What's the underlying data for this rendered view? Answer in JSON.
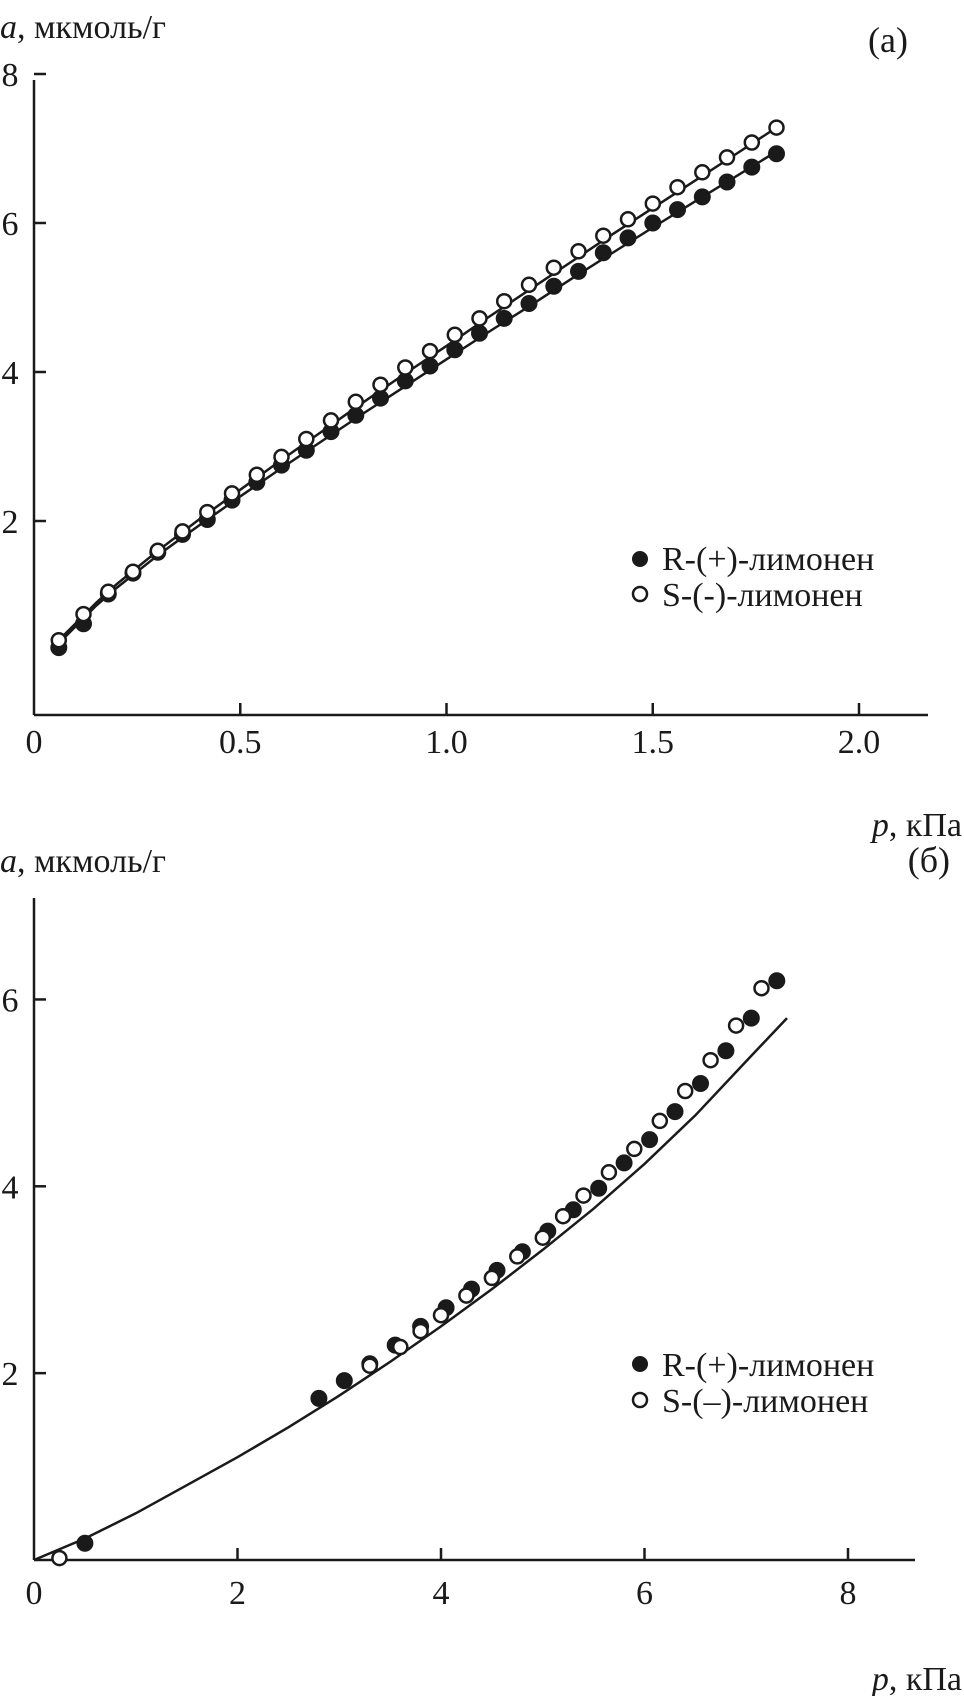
{
  "colors": {
    "ink": "#1a1a1a",
    "background": "#ffffff"
  },
  "chart_data": [
    {
      "type": "scatter",
      "panel_label": "(а)",
      "ylabel_var": "a",
      "ylabel_unit": ", мкмоль/г",
      "xlabel_var": "p",
      "xlabel_unit": ", кПа",
      "xlim": [
        0,
        2.0
      ],
      "ylim": [
        0,
        8
      ],
      "xticks": [
        {
          "value": 0,
          "label": "0"
        },
        {
          "value": 0.5,
          "label": "0.5"
        },
        {
          "value": 1.0,
          "label": "1.0"
        },
        {
          "value": 1.5,
          "label": "1.5"
        },
        {
          "value": 2.0,
          "label": "2.0"
        }
      ],
      "yticks": [
        {
          "value": 2,
          "label": "2"
        },
        {
          "value": 4,
          "label": "4"
        },
        {
          "value": 6,
          "label": "6"
        },
        {
          "value": 8,
          "label": "8"
        }
      ],
      "legend": [
        {
          "label": "R-(+)-лимонен",
          "marker": "filled"
        },
        {
          "label": "S-(-)-лимонен",
          "marker": "open"
        }
      ],
      "legend_position": "right",
      "grid": false,
      "series": [
        {
          "marker": "filled",
          "points": [
            [
              0.06,
              0.3
            ],
            [
              0.12,
              0.62
            ],
            [
              0.18,
              1.02
            ],
            [
              0.24,
              1.3
            ],
            [
              0.3,
              1.58
            ],
            [
              0.36,
              1.82
            ],
            [
              0.42,
              2.02
            ],
            [
              0.48,
              2.28
            ],
            [
              0.54,
              2.52
            ],
            [
              0.6,
              2.75
            ],
            [
              0.66,
              2.95
            ],
            [
              0.72,
              3.2
            ],
            [
              0.78,
              3.42
            ],
            [
              0.84,
              3.65
            ],
            [
              0.9,
              3.88
            ],
            [
              0.96,
              4.08
            ],
            [
              1.02,
              4.3
            ],
            [
              1.08,
              4.52
            ],
            [
              1.14,
              4.72
            ],
            [
              1.2,
              4.92
            ],
            [
              1.26,
              5.15
            ],
            [
              1.32,
              5.35
            ],
            [
              1.38,
              5.6
            ],
            [
              1.44,
              5.8
            ],
            [
              1.5,
              6.0
            ],
            [
              1.56,
              6.18
            ],
            [
              1.62,
              6.35
            ],
            [
              1.68,
              6.55
            ],
            [
              1.74,
              6.75
            ],
            [
              1.8,
              6.93
            ]
          ]
        },
        {
          "marker": "open",
          "points": [
            [
              0.06,
              0.4
            ],
            [
              0.12,
              0.75
            ],
            [
              0.18,
              1.05
            ],
            [
              0.24,
              1.32
            ],
            [
              0.3,
              1.6
            ],
            [
              0.36,
              1.86
            ],
            [
              0.42,
              2.12
            ],
            [
              0.48,
              2.37
            ],
            [
              0.54,
              2.62
            ],
            [
              0.6,
              2.86
            ],
            [
              0.66,
              3.1
            ],
            [
              0.72,
              3.35
            ],
            [
              0.78,
              3.6
            ],
            [
              0.84,
              3.83
            ],
            [
              0.9,
              4.06
            ],
            [
              0.96,
              4.28
            ],
            [
              1.02,
              4.5
            ],
            [
              1.08,
              4.72
            ],
            [
              1.14,
              4.95
            ],
            [
              1.2,
              5.17
            ],
            [
              1.26,
              5.4
            ],
            [
              1.32,
              5.62
            ],
            [
              1.38,
              5.83
            ],
            [
              1.44,
              6.05
            ],
            [
              1.5,
              6.26
            ],
            [
              1.56,
              6.48
            ],
            [
              1.62,
              6.68
            ],
            [
              1.68,
              6.88
            ],
            [
              1.74,
              7.08
            ],
            [
              1.8,
              7.28
            ]
          ]
        }
      ],
      "fit_curves": [
        {
          "points": [
            [
              0.06,
              0.36
            ],
            [
              0.1,
              0.58
            ],
            [
              0.15,
              0.86
            ],
            [
              0.2,
              1.1
            ],
            [
              0.3,
              1.54
            ],
            [
              0.4,
              1.94
            ],
            [
              0.5,
              2.33
            ],
            [
              0.6,
              2.71
            ],
            [
              0.7,
              3.08
            ],
            [
              0.8,
              3.45
            ],
            [
              0.9,
              3.81
            ],
            [
              1.0,
              4.17
            ],
            [
              1.1,
              4.53
            ],
            [
              1.2,
              4.88
            ],
            [
              1.3,
              5.24
            ],
            [
              1.4,
              5.59
            ],
            [
              1.5,
              5.94
            ],
            [
              1.6,
              6.28
            ],
            [
              1.7,
              6.62
            ],
            [
              1.8,
              6.96
            ]
          ]
        },
        {
          "points": [
            [
              0.06,
              0.4
            ],
            [
              0.1,
              0.62
            ],
            [
              0.15,
              0.9
            ],
            [
              0.2,
              1.15
            ],
            [
              0.3,
              1.6
            ],
            [
              0.4,
              2.02
            ],
            [
              0.5,
              2.42
            ],
            [
              0.6,
              2.82
            ],
            [
              0.7,
              3.21
            ],
            [
              0.8,
              3.6
            ],
            [
              0.9,
              3.98
            ],
            [
              1.0,
              4.35
            ],
            [
              1.1,
              4.73
            ],
            [
              1.2,
              5.1
            ],
            [
              1.3,
              5.47
            ],
            [
              1.4,
              5.84
            ],
            [
              1.5,
              6.2
            ],
            [
              1.6,
              6.56
            ],
            [
              1.7,
              6.92
            ],
            [
              1.8,
              7.28
            ]
          ]
        }
      ]
    },
    {
      "type": "scatter",
      "panel_label": "(б)",
      "ylabel_var": "a",
      "ylabel_unit": ", мкмоль/г",
      "xlabel_var": "p",
      "xlabel_unit": ", кПа",
      "xlim": [
        0,
        8
      ],
      "ylim": [
        0,
        7.3
      ],
      "xticks": [
        {
          "value": 0,
          "label": "0"
        },
        {
          "value": 2,
          "label": "2"
        },
        {
          "value": 4,
          "label": "4"
        },
        {
          "value": 6,
          "label": "6"
        },
        {
          "value": 8,
          "label": "8"
        }
      ],
      "yticks": [
        {
          "value": 2,
          "label": "2"
        },
        {
          "value": 4,
          "label": "4"
        },
        {
          "value": 6,
          "label": "6"
        }
      ],
      "legend": [
        {
          "label": "R-(+)-лимонен",
          "marker": "filled"
        },
        {
          "label": "S-(–)-лимонен",
          "marker": "open"
        }
      ],
      "legend_position": "right",
      "grid": false,
      "series": [
        {
          "marker": "filled",
          "points": [
            [
              0.5,
              0.18
            ],
            [
              2.8,
              1.73
            ],
            [
              3.05,
              1.92
            ],
            [
              3.3,
              2.1
            ],
            [
              3.55,
              2.3
            ],
            [
              3.8,
              2.5
            ],
            [
              4.05,
              2.7
            ],
            [
              4.3,
              2.9
            ],
            [
              4.55,
              3.1
            ],
            [
              4.8,
              3.3
            ],
            [
              5.05,
              3.52
            ],
            [
              5.3,
              3.75
            ],
            [
              5.55,
              3.98
            ],
            [
              5.8,
              4.25
            ],
            [
              6.05,
              4.5
            ],
            [
              6.3,
              4.8
            ],
            [
              6.55,
              5.1
            ],
            [
              6.8,
              5.45
            ],
            [
              7.05,
              5.8
            ],
            [
              7.3,
              6.2
            ]
          ]
        },
        {
          "marker": "open",
          "points": [
            [
              0.25,
              0.02
            ],
            [
              3.3,
              2.08
            ],
            [
              3.6,
              2.28
            ],
            [
              3.8,
              2.45
            ],
            [
              4.0,
              2.62
            ],
            [
              4.25,
              2.83
            ],
            [
              4.5,
              3.02
            ],
            [
              4.75,
              3.25
            ],
            [
              5.0,
              3.45
            ],
            [
              5.2,
              3.68
            ],
            [
              5.4,
              3.9
            ],
            [
              5.65,
              4.15
            ],
            [
              5.9,
              4.4
            ],
            [
              6.15,
              4.7
            ],
            [
              6.4,
              5.02
            ],
            [
              6.65,
              5.35
            ],
            [
              6.9,
              5.72
            ],
            [
              7.15,
              6.12
            ]
          ]
        }
      ],
      "fit_curves": [
        {
          "points": [
            [
              0,
              0
            ],
            [
              0.5,
              0.23
            ],
            [
              1.0,
              0.5
            ],
            [
              1.5,
              0.8
            ],
            [
              2.0,
              1.1
            ],
            [
              2.5,
              1.42
            ],
            [
              3.0,
              1.76
            ],
            [
              3.5,
              2.12
            ],
            [
              4.0,
              2.5
            ],
            [
              4.5,
              2.9
            ],
            [
              5.0,
              3.32
            ],
            [
              5.5,
              3.76
            ],
            [
              6.0,
              4.24
            ],
            [
              6.5,
              4.76
            ],
            [
              7.0,
              5.34
            ],
            [
              7.4,
              5.8
            ]
          ]
        }
      ]
    }
  ]
}
